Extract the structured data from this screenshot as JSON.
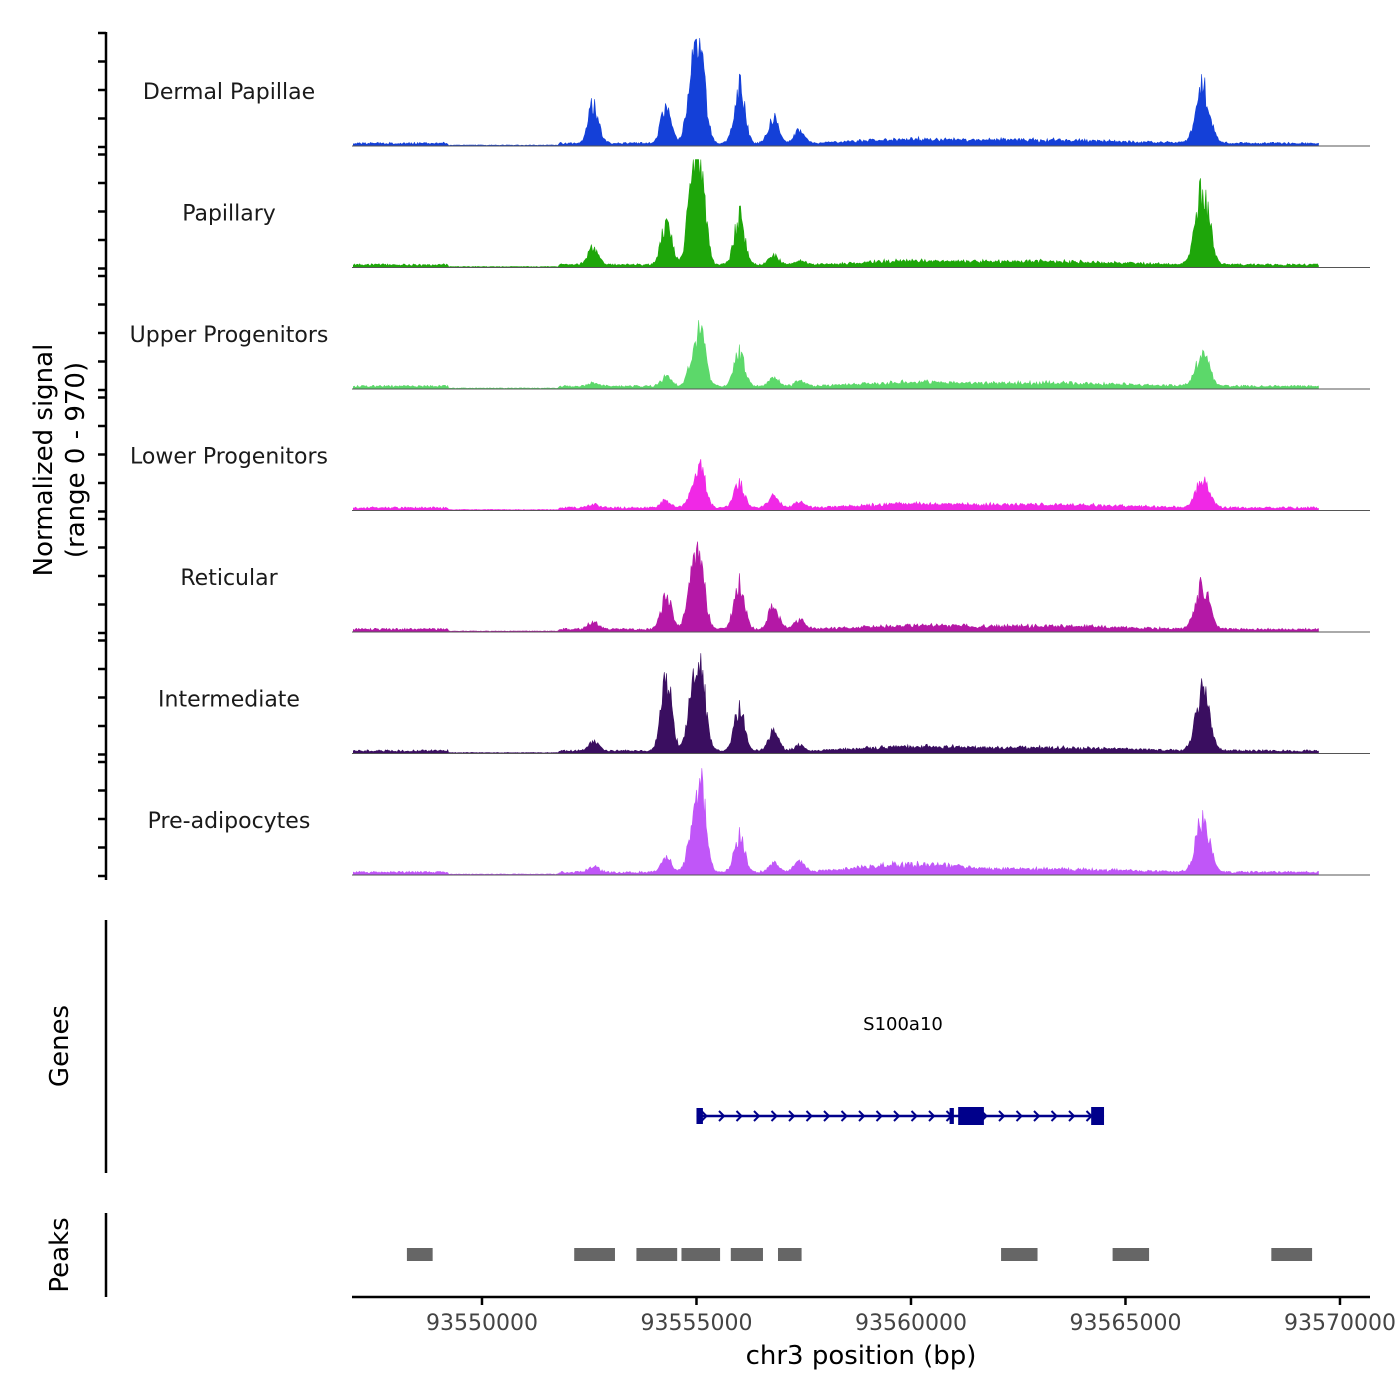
{
  "chart_data": {
    "type": "area",
    "ylabel_line1": "Normalized signal",
    "ylabel_line2": "(range 0 - 970)",
    "ylim": [
      0,
      970
    ],
    "xlabel": "chr3 position (bp)",
    "xlim": [
      93546970,
      93570700
    ],
    "x_ticks": [
      93550000,
      93555000,
      93560000,
      93565000,
      93570000
    ],
    "x_tick_labels": [
      "93550000",
      "93555000",
      "93560000",
      "93565000",
      "93570000"
    ],
    "tracks": [
      {
        "name": "Dermal Papillae",
        "color": "#1440d8",
        "peak_heights": [
          0.42,
          0.4,
          0.68,
          0.84,
          0.6,
          0.28,
          0.14,
          0.62
        ]
      },
      {
        "name": "Papillary",
        "color": "#1ea60a",
        "peak_heights": [
          0.2,
          0.45,
          0.74,
          0.86,
          0.5,
          0.1,
          0.04,
          0.8
        ]
      },
      {
        "name": "Upper Progenitors",
        "color": "#5cd86a",
        "peak_heights": [
          0.04,
          0.1,
          0.2,
          0.55,
          0.36,
          0.1,
          0.05,
          0.34
        ]
      },
      {
        "name": "Lower Progenitors",
        "color": "#f028e6",
        "peak_heights": [
          0.04,
          0.08,
          0.14,
          0.4,
          0.26,
          0.12,
          0.06,
          0.31
        ]
      },
      {
        "name": "Reticular",
        "color": "#b418a6",
        "peak_heights": [
          0.08,
          0.35,
          0.6,
          0.56,
          0.5,
          0.26,
          0.1,
          0.48
        ]
      },
      {
        "name": "Intermediate",
        "color": "#3a0e60",
        "peak_heights": [
          0.1,
          0.8,
          0.5,
          0.78,
          0.46,
          0.2,
          0.06,
          0.66
        ]
      },
      {
        "name": "Pre-adipocytes",
        "color": "#c056f8",
        "peak_heights": [
          0.06,
          0.16,
          0.36,
          0.88,
          0.4,
          0.1,
          0.12,
          0.58
        ]
      }
    ],
    "peak_centers": [
      93552600,
      93554300,
      93554900,
      93555100,
      93556000,
      93556800,
      93557400,
      93566800
    ],
    "genes": {
      "label": "Genes",
      "name": "S100a10",
      "strand": "+",
      "color": "#00008b",
      "start": 93555000,
      "end": 93564500,
      "exons": [
        {
          "start": 93555000,
          "end": 93555150
        },
        {
          "start": 93560900,
          "end": 93561000
        },
        {
          "start": 93561100,
          "end": 93561700
        },
        {
          "start": 93564200,
          "end": 93564500
        }
      ]
    },
    "peaks": {
      "label": "Peaks",
      "color": "#666666",
      "regions": [
        [
          93548250,
          93548850
        ],
        [
          93552150,
          93553100
        ],
        [
          93553600,
          93554550
        ],
        [
          93554650,
          93555550
        ],
        [
          93555800,
          93556550
        ],
        [
          93556900,
          93557450
        ],
        [
          93562100,
          93562950
        ],
        [
          93564700,
          93565550
        ],
        [
          93568400,
          93569350
        ]
      ]
    }
  }
}
